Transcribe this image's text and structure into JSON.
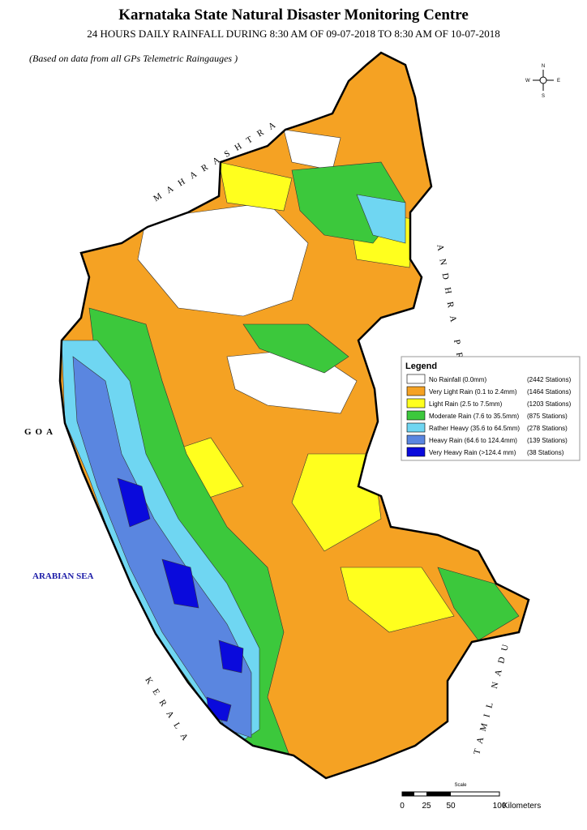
{
  "header": {
    "title": "Karnataka State Natural Disaster Monitoring Centre",
    "subtitle": "24 HOURS DAILY RAINFALL DURING 8:30 AM OF  09-07-2018 TO 8:30 AM OF 10-07-2018",
    "note": "(Based on data from all GPs Telemetric Raingauges )"
  },
  "legend": {
    "title": "Legend",
    "items": [
      {
        "label": "No Rainfall (0.0mm)",
        "count": "(2442 Stations)",
        "color": "#ffffff"
      },
      {
        "label": "Very Light Rain (0.1 to 2.4mm)",
        "count": "(1464 Stations)",
        "color": "#f5a223"
      },
      {
        "label": "Light Rain (2.5 to 7.5mm)",
        "count": "(1203 Stations)",
        "color": "#ffff1e"
      },
      {
        "label": "Moderate Rain (7.6 to 35.5mm)",
        "count": "(875 Stations)",
        "color": "#3cc83c"
      },
      {
        "label": "Rather Heavy  (35.6 to 64.5mm)",
        "count": "(278 Stations)",
        "color": "#6fd6f2"
      },
      {
        "label": "Heavy Rain  (64.6 to 124.4mm)",
        "count": "(139 Stations)",
        "color": "#5a86e0"
      },
      {
        "label": "Very Heavy Rain  (>124.4 mm)",
        "count": "(38 Stations)",
        "color": "#0a0adc"
      }
    ]
  },
  "regions": {
    "maharashtra": "MAHARASHTRA",
    "goa": "GOA",
    "sea": "ARABIAN SEA",
    "kerala": "KERALA",
    "tamil_nadu": "TAMIL NADU",
    "andhra": "ANDHRA PRADESH"
  },
  "compass": {
    "n": "N",
    "s": "S",
    "e": "E",
    "w": "W"
  },
  "scale": {
    "title": "Scale",
    "ticks": [
      "0",
      "25",
      "50",
      "100"
    ],
    "unit": "Kilometers"
  }
}
